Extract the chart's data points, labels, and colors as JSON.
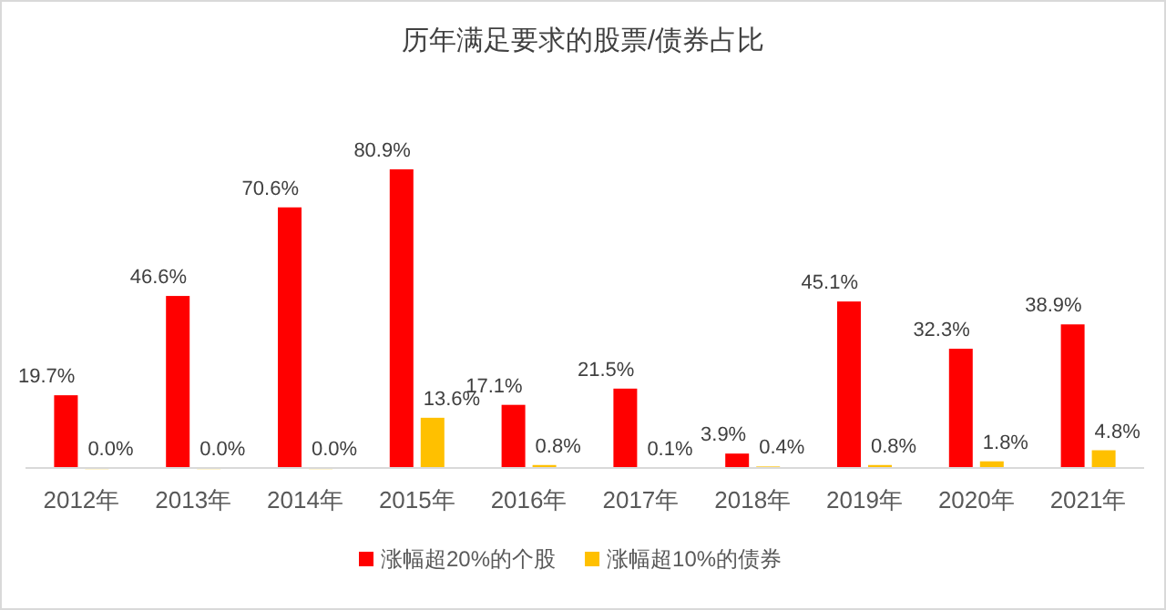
{
  "chart_data": {
    "type": "bar",
    "title": "历年满足要求的股票/债券占比",
    "categories": [
      "2012年",
      "2013年",
      "2014年",
      "2015年",
      "2016年",
      "2017年",
      "2018年",
      "2019年",
      "2020年",
      "2021年"
    ],
    "series": [
      {
        "name": "涨幅超20%的个股",
        "color": "#ff0000",
        "values": [
          19.7,
          46.6,
          70.6,
          80.9,
          17.1,
          21.5,
          3.9,
          45.1,
          32.3,
          38.9
        ],
        "value_labels": [
          "19.7%",
          "46.6%",
          "70.6%",
          "80.9%",
          "17.1%",
          "21.5%",
          "3.9%",
          "45.1%",
          "32.3%",
          "38.9%"
        ]
      },
      {
        "name": "涨幅超10%的债券",
        "color": "#ffc000",
        "values": [
          0.0,
          0.0,
          0.0,
          13.6,
          0.8,
          0.1,
          0.4,
          0.8,
          1.8,
          4.8
        ],
        "value_labels": [
          "0.0%",
          "0.0%",
          "0.0%",
          "13.6%",
          "0.8%",
          "0.1%",
          "0.4%",
          "0.8%",
          "1.8%",
          "4.8%"
        ]
      }
    ],
    "legend": "bottom"
  }
}
